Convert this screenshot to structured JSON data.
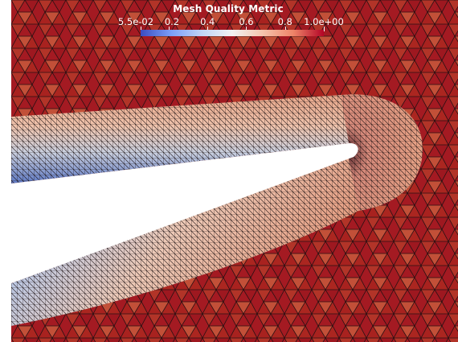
{
  "legend": {
    "title": "Mesh Quality Metric",
    "ticks": [
      "5.5e-02",
      "0.2",
      "0.4",
      "0.6",
      "0.8",
      "1.0e+00"
    ],
    "tick_values": [
      0.055,
      0.2,
      0.4,
      0.6,
      0.8,
      1.0
    ],
    "range": [
      0.055,
      1.0
    ],
    "colormap_colors": [
      "#3b4cc0",
      "#c0d4f5",
      "#f2f2f2",
      "#ee8468",
      "#b40426"
    ]
  },
  "colors": {
    "background_mesh": "#a41a22",
    "edge_color": "#1a0f10",
    "cutout": "#ffffff"
  }
}
